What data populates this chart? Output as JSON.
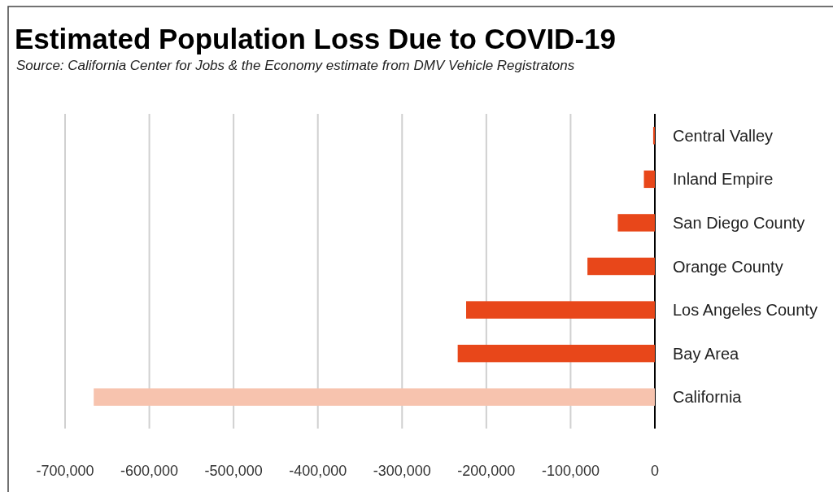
{
  "chart_data": {
    "type": "bar",
    "orientation": "horizontal",
    "title": "Estimated Population Loss Due to COVID-19",
    "annotations": [
      "Source:  California Center for Jobs & the Economy estimate from DMV Vehicle Registratons"
    ],
    "categories": [
      "Central Valley",
      "Inland Empire",
      "San Diego County",
      "Orange County",
      "Los Angeles County",
      "Bay Area",
      "California"
    ],
    "values": [
      -2000,
      -13000,
      -44000,
      -80000,
      -224000,
      -234000,
      -666000
    ],
    "colors": [
      "#e8471a",
      "#e8471a",
      "#e8471a",
      "#e8471a",
      "#e8471a",
      "#e8471a",
      "#f7c3ae"
    ],
    "xlim": [
      -700000,
      0
    ],
    "xticks": [
      {
        "value": -700000,
        "label": "-700,000"
      },
      {
        "value": -600000,
        "label": "-600,000"
      },
      {
        "value": -500000,
        "label": "-500,000"
      },
      {
        "value": -400000,
        "label": "-400,000"
      },
      {
        "value": -300000,
        "label": "-300,000"
      },
      {
        "value": -200000,
        "label": "-200,000"
      },
      {
        "value": -100000,
        "label": "-100,000"
      },
      0
    ],
    "grid": "x"
  }
}
